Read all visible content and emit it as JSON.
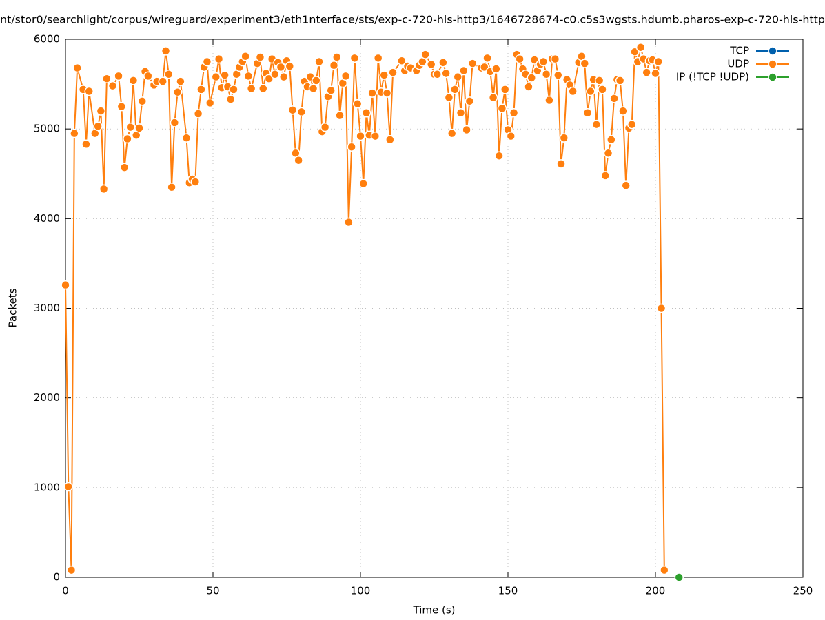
{
  "chart_data": {
    "type": "line",
    "title": "nt/stor0/searchlight/corpus/wireguard/experiment3/eth1nterface/sts/exp-c-720-hls-http3/1646728674-c0.c5s3wgsts.hdumb.pharos-exp-c-720-hls-http",
    "x_label": "Time (s)",
    "y_label": "Packets",
    "xlim": [
      0,
      250
    ],
    "xticks": [
      0,
      50,
      100,
      150,
      200,
      250
    ],
    "ylim": [
      0,
      6000
    ],
    "yticks": [
      0,
      1000,
      2000,
      3000,
      4000,
      5000,
      6000
    ],
    "grid": true,
    "legend": "top-right",
    "series": [
      {
        "name": "TCP",
        "color": "#0060ad",
        "x": [],
        "values": []
      },
      {
        "name": "UDP",
        "color": "#ff7f0e",
        "x": [
          0,
          1,
          2,
          3,
          4,
          6,
          7,
          8,
          10,
          11,
          12,
          13,
          14,
          16,
          18,
          19,
          20,
          21,
          22,
          23,
          24,
          25,
          26,
          27,
          28,
          30,
          31,
          33,
          34,
          35,
          36,
          37,
          38,
          39,
          41,
          42,
          43,
          44,
          45,
          46,
          47,
          48,
          49,
          51,
          52,
          53,
          54,
          55,
          56,
          57,
          58,
          59,
          60,
          61,
          62,
          63,
          65,
          66,
          67,
          68,
          69,
          70,
          71,
          72,
          73,
          74,
          75,
          76,
          77,
          78,
          79,
          80,
          81,
          82,
          83,
          84,
          85,
          86,
          87,
          88,
          89,
          90,
          91,
          92,
          93,
          94,
          95,
          96,
          97,
          98,
          99,
          100,
          101,
          102,
          103,
          104,
          105,
          106,
          107,
          108,
          109,
          110,
          111,
          114,
          115,
          116,
          117,
          119,
          120,
          121,
          122,
          124,
          125,
          126,
          128,
          129,
          130,
          131,
          132,
          133,
          134,
          135,
          136,
          137,
          138,
          141,
          142,
          143,
          144,
          145,
          146,
          147,
          148,
          149,
          150,
          151,
          152,
          153,
          154,
          155,
          156,
          157,
          158,
          159,
          160,
          161,
          162,
          163,
          164,
          165,
          166,
          167,
          168,
          169,
          170,
          171,
          172,
          174,
          175,
          176,
          177,
          178,
          179,
          180,
          181,
          182,
          183,
          184,
          185,
          186,
          187,
          188,
          189,
          190,
          191,
          192,
          193,
          194,
          195,
          196,
          197,
          198,
          199,
          200,
          201,
          202,
          203
        ],
        "values": [
          3260,
          1010,
          80,
          4950,
          5680,
          5440,
          4830,
          5420,
          4950,
          5030,
          5200,
          4330,
          5560,
          5480,
          5590,
          5250,
          4570,
          4890,
          5020,
          5540,
          4930,
          5010,
          5310,
          5640,
          5590,
          5490,
          5530,
          5530,
          5870,
          5610,
          4350,
          5070,
          5410,
          5530,
          4900,
          4400,
          4440,
          4410,
          5170,
          5440,
          5690,
          5750,
          5290,
          5580,
          5780,
          5460,
          5600,
          5470,
          5330,
          5440,
          5610,
          5690,
          5750,
          5810,
          5590,
          5450,
          5730,
          5800,
          5450,
          5620,
          5560,
          5780,
          5610,
          5740,
          5690,
          5580,
          5760,
          5700,
          5210,
          4730,
          4650,
          5190,
          5530,
          5470,
          5580,
          5450,
          5540,
          5750,
          4970,
          5020,
          5360,
          5430,
          5710,
          5800,
          5150,
          5510,
          5590,
          3960,
          4800,
          5790,
          5280,
          4920,
          4390,
          5180,
          4930,
          5400,
          4920,
          5790,
          5410,
          5600,
          5400,
          4880,
          5630,
          5760,
          5650,
          5700,
          5680,
          5650,
          5710,
          5750,
          5830,
          5720,
          5610,
          5610,
          5740,
          5620,
          5350,
          4950,
          5440,
          5580,
          5180,
          5650,
          4990,
          5310,
          5730,
          5680,
          5690,
          5790,
          5640,
          5350,
          5670,
          4700,
          5230,
          5440,
          4990,
          4920,
          5180,
          5830,
          5780,
          5670,
          5610,
          5470,
          5570,
          5770,
          5650,
          5720,
          5750,
          5610,
          5320,
          5780,
          5780,
          5600,
          4610,
          4900,
          5550,
          5490,
          5420,
          5740,
          5810,
          5730,
          5180,
          5420,
          5550,
          5050,
          5540,
          5440,
          4480,
          4730,
          4880,
          5340,
          5550,
          5540,
          5200,
          4370,
          5010,
          5050,
          5860,
          5750,
          5910,
          5780,
          5630,
          5760,
          5770,
          5620,
          5750,
          3000,
          80
        ]
      },
      {
        "name": "IP (!TCP  !UDP)",
        "color": "#2ca02c",
        "x": [
          208
        ],
        "values": [
          0
        ]
      }
    ]
  }
}
